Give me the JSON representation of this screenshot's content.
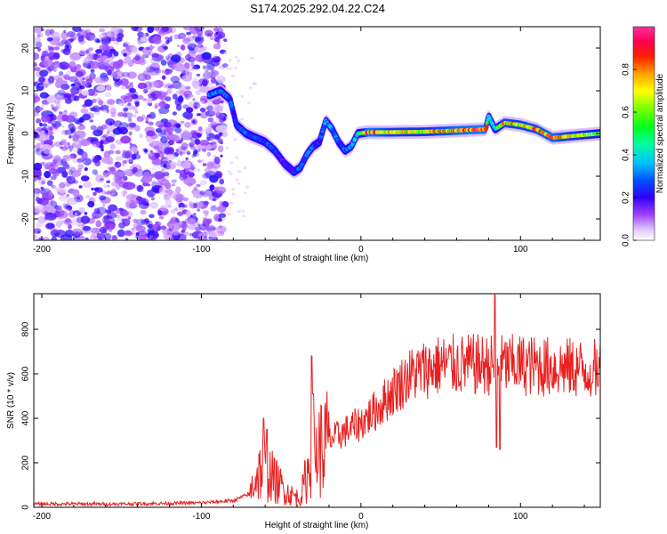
{
  "title": "S174.2025.292.04.22.C24",
  "chart_data": [
    {
      "type": "heatmap",
      "xlabel": "Height of straight line (km)",
      "ylabel": "Frequency (Hz)",
      "xlim": [
        -205,
        150
      ],
      "ylim": [
        -25,
        25
      ],
      "xticks": [
        -200,
        -100,
        0,
        100
      ],
      "yticks": [
        -20,
        -10,
        0,
        10,
        20
      ],
      "colorbar": {
        "label": "Normalized spectral amplitude",
        "range": [
          0,
          1
        ],
        "ticks": [
          0.0,
          0.2,
          0.4,
          0.6,
          0.8
        ],
        "tick_labels": [
          "0.0",
          "0.2",
          "0.4",
          "0.6",
          "0.8"
        ],
        "colormap": [
          "#ffffff",
          "#c8a0ff",
          "#8000ff",
          "#0000ff",
          "#00c0ff",
          "#00ffa0",
          "#00ff00",
          "#a0ff00",
          "#ffff00",
          "#ff9000",
          "#ff0000",
          "#ff0060",
          "#ff20a0"
        ]
      },
      "ridge": {
        "x": [
          -95,
          -88,
          -82,
          -78,
          -72,
          -66,
          -60,
          -54,
          -48,
          -42,
          -38,
          -34,
          -30,
          -26,
          -22,
          -18,
          -14,
          -10,
          -6,
          -2,
          5,
          20,
          40,
          60,
          78,
          80,
          84,
          90,
          100,
          110,
          120,
          135,
          150
        ],
        "y": [
          9,
          10,
          8,
          2,
          0,
          -1,
          -2,
          -4,
          -7,
          -9,
          -8,
          -5,
          -3,
          -2,
          3,
          1,
          -2,
          -4,
          -3,
          0,
          0.3,
          0.3,
          0.4,
          0.7,
          1,
          4,
          1,
          2.5,
          2,
          1,
          -1,
          -0.5,
          0
        ],
        "amplitude": [
          0.3,
          0.35,
          0.3,
          0.25,
          0.3,
          0.3,
          0.3,
          0.25,
          0.2,
          0.25,
          0.3,
          0.3,
          0.3,
          0.25,
          0.35,
          0.35,
          0.3,
          0.3,
          0.35,
          0.4,
          0.9,
          0.75,
          0.7,
          0.85,
          0.9,
          0.4,
          0.4,
          0.8,
          0.75,
          0.8,
          0.85,
          0.7,
          0.6
        ]
      },
      "noise_region_x": [
        -205,
        -85
      ],
      "noise_amplitude": 0.15
    },
    {
      "type": "line",
      "xlabel": "Height of straight line (km)",
      "ylabel": "SNR (10 * v/v)",
      "xlim": [
        -205,
        150
      ],
      "ylim": [
        0,
        960
      ],
      "xticks": [
        -200,
        -100,
        0,
        100
      ],
      "yticks": [
        0,
        200,
        400,
        600,
        800
      ],
      "color": "#e82020",
      "trend": {
        "x": [
          -205,
          -150,
          -100,
          -80,
          -70,
          -65,
          -60,
          -55,
          -45,
          -38,
          -35,
          -30,
          -20,
          -10,
          0,
          10,
          20,
          30,
          40,
          50,
          60,
          80,
          100,
          120,
          150
        ],
        "y": [
          15,
          15,
          20,
          30,
          60,
          150,
          180,
          130,
          60,
          40,
          120,
          230,
          300,
          340,
          380,
          440,
          520,
          590,
          620,
          640,
          640,
          640,
          640,
          630,
          620
        ]
      },
      "spikes": [
        {
          "x": -61,
          "y": 400
        },
        {
          "x": -59,
          "y": 350
        },
        {
          "x": -31,
          "y": 680
        },
        {
          "x": -30,
          "y": 510
        },
        {
          "x": 84,
          "y": 955
        },
        {
          "x": 85,
          "y": 270
        },
        {
          "x": 87,
          "y": 260
        },
        {
          "x": 145,
          "y": 560
        }
      ]
    }
  ]
}
